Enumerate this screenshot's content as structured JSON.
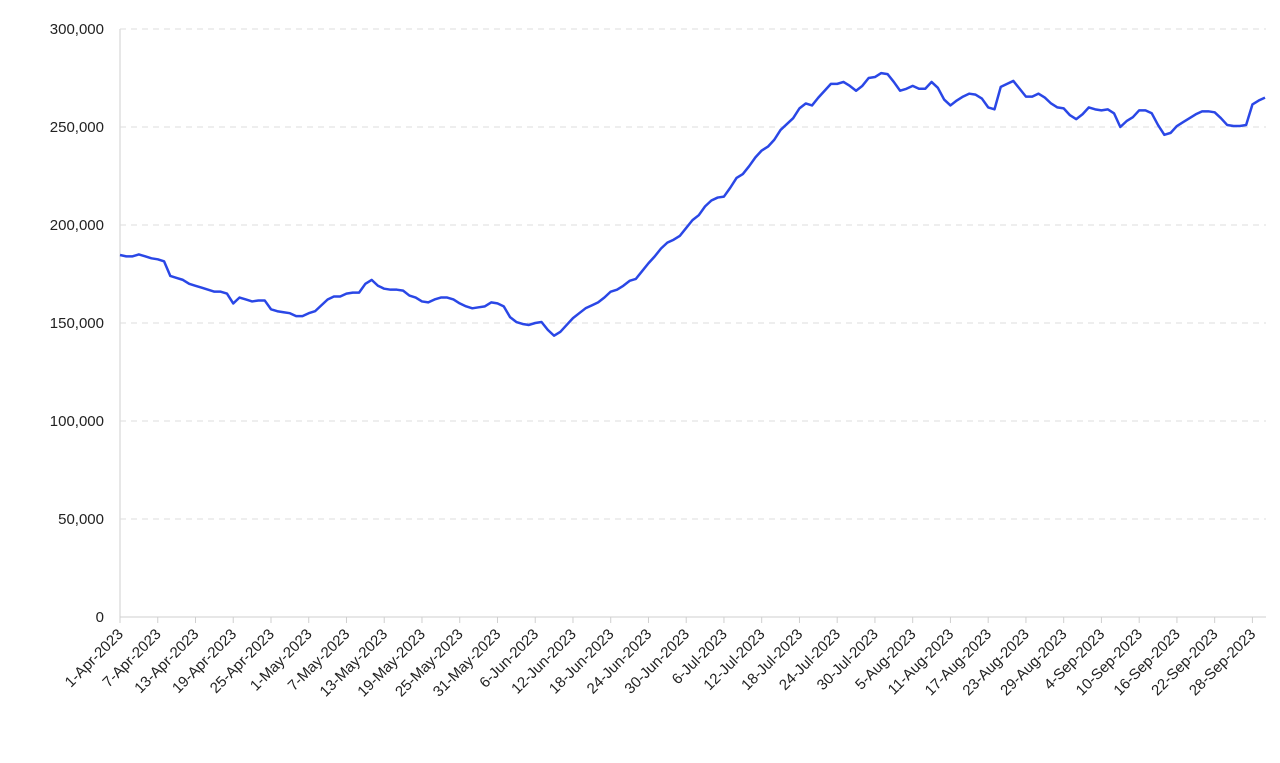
{
  "chart_data": {
    "type": "line",
    "color": "#2a47e6",
    "grid": true,
    "categories": [
      "1-Apr-2023",
      null,
      null,
      null,
      null,
      null,
      "7-Apr-2023",
      null,
      null,
      null,
      null,
      null,
      "13-Apr-2023",
      null,
      null,
      null,
      null,
      null,
      "19-Apr-2023",
      null,
      null,
      null,
      null,
      null,
      "25-Apr-2023",
      null,
      null,
      null,
      null,
      null,
      "1-May-2023",
      null,
      null,
      null,
      null,
      null,
      "7-May-2023",
      null,
      null,
      null,
      null,
      null,
      "13-May-2023",
      null,
      null,
      null,
      null,
      null,
      "19-May-2023",
      null,
      null,
      null,
      null,
      null,
      "25-May-2023",
      null,
      null,
      null,
      null,
      null,
      "31-May-2023",
      null,
      null,
      null,
      null,
      null,
      "6-Jun-2023",
      null,
      null,
      null,
      null,
      null,
      "12-Jun-2023",
      null,
      null,
      null,
      null,
      null,
      "18-Jun-2023",
      null,
      null,
      null,
      null,
      null,
      "24-Jun-2023",
      null,
      null,
      null,
      null,
      null,
      "30-Jun-2023",
      null,
      null,
      null,
      null,
      null,
      "6-Jul-2023",
      null,
      null,
      null,
      null,
      null,
      "12-Jul-2023",
      null,
      null,
      null,
      null,
      null,
      "18-Jul-2023",
      null,
      null,
      null,
      null,
      null,
      "24-Jul-2023",
      null,
      null,
      null,
      null,
      null,
      "30-Jul-2023",
      null,
      null,
      null,
      null,
      null,
      "5-Aug-2023",
      null,
      null,
      null,
      null,
      null,
      "11-Aug-2023",
      null,
      null,
      null,
      null,
      null,
      "17-Aug-2023",
      null,
      null,
      null,
      null,
      null,
      "23-Aug-2023",
      null,
      null,
      null,
      null,
      null,
      "29-Aug-2023",
      null,
      null,
      null,
      null,
      null,
      "4-Sep-2023",
      null,
      null,
      null,
      null,
      null,
      "10-Sep-2023",
      null,
      null,
      null,
      null,
      null,
      "16-Sep-2023",
      null,
      null,
      null,
      null,
      null,
      "22-Sep-2023",
      null,
      null,
      null,
      null,
      null,
      "28-Sep-2023",
      null,
      null
    ],
    "values": [
      184700,
      184000,
      184000,
      185000,
      184000,
      183000,
      182500,
      181500,
      174000,
      173000,
      172000,
      170000,
      169000,
      168000,
      167000,
      166000,
      166000,
      165000,
      160000,
      163000,
      162000,
      161000,
      161500,
      161500,
      157000,
      156000,
      155500,
      155000,
      153500,
      153500,
      155000,
      156000,
      159000,
      162000,
      163500,
      163500,
      165000,
      165500,
      165500,
      170000,
      172000,
      169000,
      167500,
      167000,
      167000,
      166500,
      164000,
      163000,
      161000,
      160500,
      162000,
      163000,
      163000,
      162000,
      160000,
      158500,
      157500,
      158000,
      158500,
      160500,
      160000,
      158500,
      153000,
      150500,
      149500,
      149000,
      150000,
      150500,
      146500,
      143500,
      145500,
      149000,
      152500,
      155000,
      157500,
      159000,
      160500,
      163000,
      166000,
      167000,
      169000,
      171500,
      172500,
      176500,
      180500,
      184000,
      188000,
      191000,
      192500,
      194500,
      198500,
      202500,
      205000,
      209500,
      212500,
      214000,
      214500,
      219000,
      224000,
      226000,
      230000,
      234500,
      238000,
      240000,
      243500,
      248500,
      251500,
      254500,
      259500,
      262000,
      261000,
      265000,
      268500,
      272000,
      272000,
      273000,
      271000,
      268500,
      271000,
      275000,
      275500,
      277500,
      277000,
      273000,
      268500,
      269500,
      271000,
      269500,
      269500,
      273000,
      270000,
      264000,
      261000,
      263500,
      265500,
      267000,
      266500,
      264500,
      260000,
      259000,
      270500,
      272000,
      273500,
      269500,
      265500,
      265500,
      267000,
      265000,
      262000,
      260000,
      259500,
      256000,
      254000,
      256500,
      260000,
      259000,
      258500,
      259000,
      257000,
      250000,
      253000,
      255000,
      258500,
      258500,
      257000,
      251000,
      246000,
      247000,
      250500,
      252500,
      254500,
      256500,
      258000,
      258000,
      257500,
      254500,
      251000,
      250500,
      250500,
      251000,
      261500,
      263500,
      265000
    ],
    "ylim": [
      0,
      300000
    ],
    "yticks": [
      0,
      {
        "value": 50000,
        "label": "50,000"
      },
      {
        "value": 100000,
        "label": "100,000"
      },
      {
        "value": 150000,
        "label": "150,000"
      },
      {
        "value": 200000,
        "label": "200,000"
      },
      {
        "value": 250000,
        "label": "250,000"
      },
      {
        "value": 300000,
        "label": "300,000"
      }
    ]
  }
}
